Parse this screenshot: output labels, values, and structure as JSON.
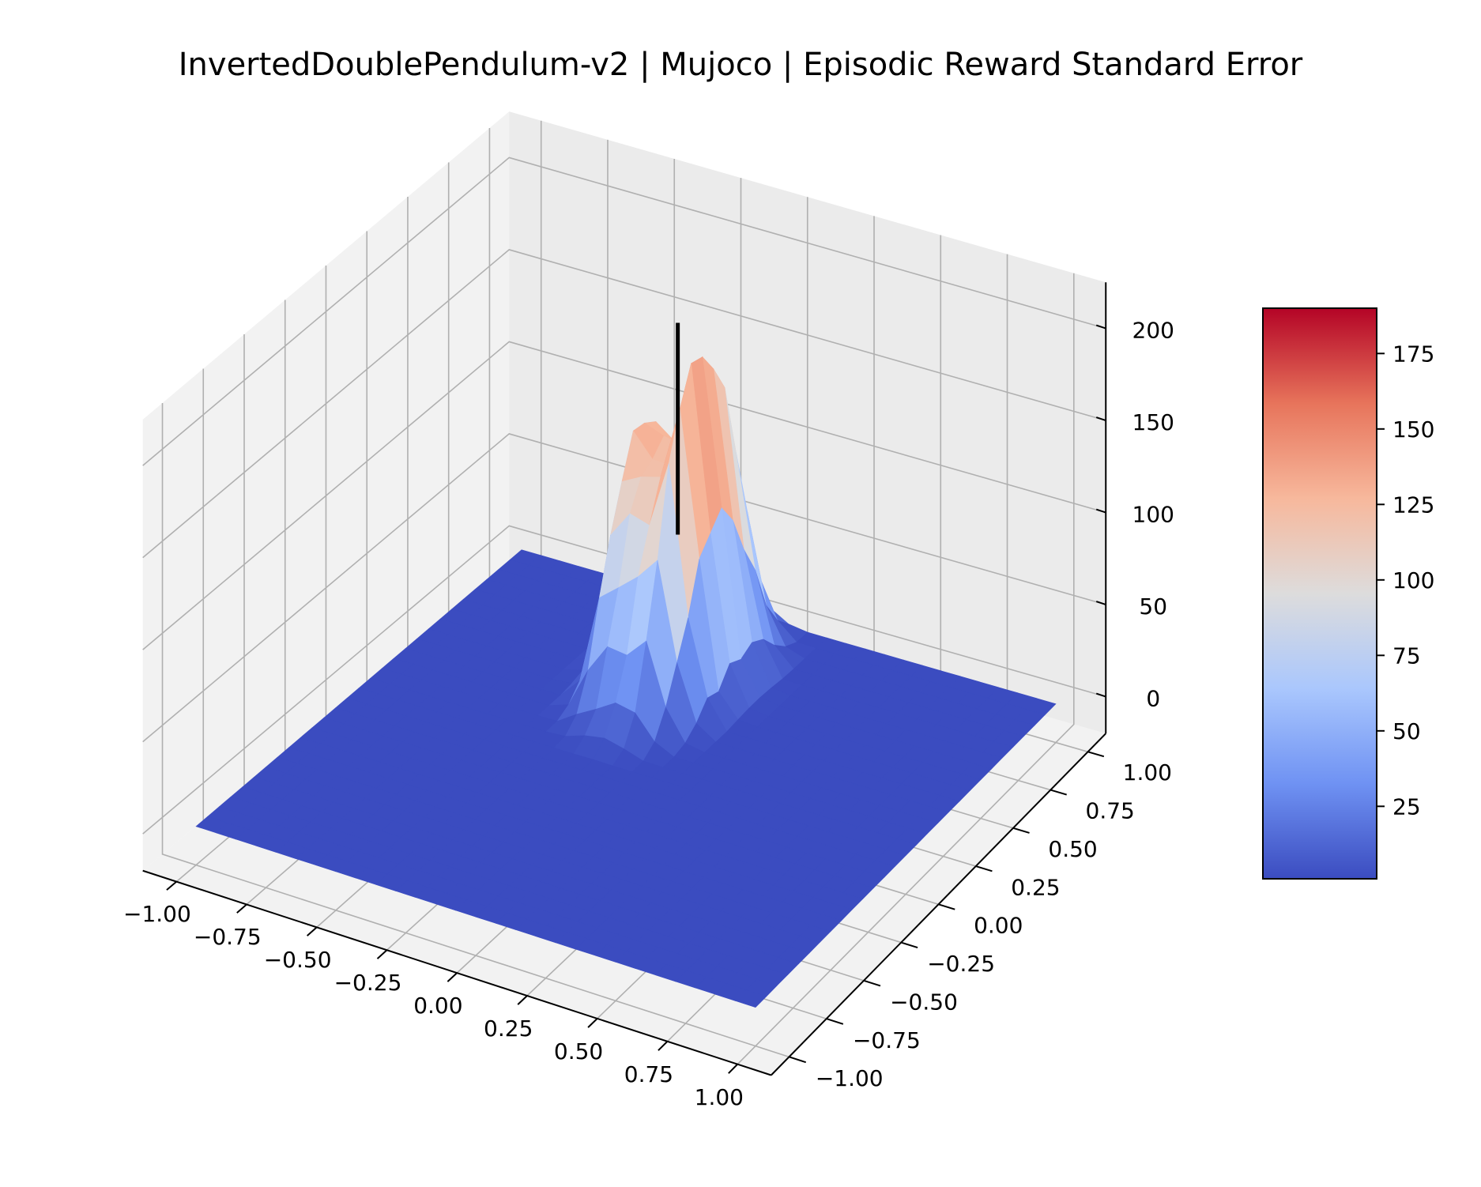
{
  "chart_data": {
    "type": "surface3d",
    "title": "InvertedDoublePendulum-v2 | Mujoco | Episodic Reward Standard Error",
    "xlabel": "",
    "ylabel": "",
    "zlabel": "",
    "colormap": "coolwarm",
    "x_ticks": [
      "−1.00",
      "−0.75",
      "−0.50",
      "−0.25",
      "0.00",
      "0.25",
      "0.50",
      "0.75",
      "1.00"
    ],
    "y_ticks": [
      "−1.00",
      "−0.75",
      "−0.50",
      "−0.25",
      "0.00",
      "0.25",
      "0.50",
      "0.75",
      "1.00"
    ],
    "z_ticks": [
      "0",
      "50",
      "100",
      "150",
      "200"
    ],
    "xlim": [
      -1,
      1
    ],
    "ylim": [
      -1,
      1
    ],
    "zlim": [
      -20,
      220
    ],
    "colorbar": {
      "ticks": [
        "25",
        "50",
        "75",
        "100",
        "125",
        "150",
        "175"
      ],
      "range": [
        1,
        190
      ],
      "colors": [
        "#3b4cc0",
        "#6f92f3",
        "#aac7fd",
        "#dddcdc",
        "#f7b89c",
        "#e7745b",
        "#b40426"
      ]
    },
    "surface": {
      "description_peak_center": [
        -0.15,
        0.55
      ],
      "peak_value": 190,
      "baseline_value": 1
    },
    "marker_line": {
      "x": -0.15,
      "y": 0.55,
      "z_range": [
        80,
        195
      ],
      "color": "#000000"
    }
  }
}
